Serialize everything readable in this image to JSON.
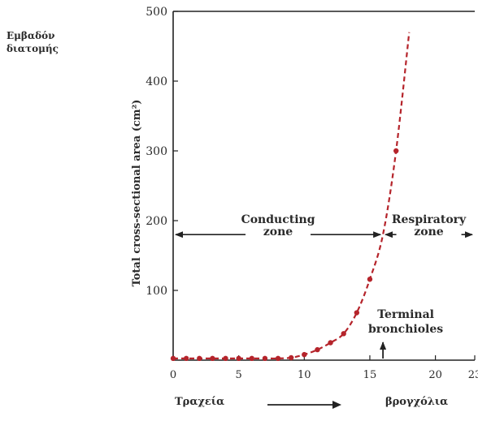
{
  "side_label": {
    "line1": "Εμβαδόν",
    "line2": "διατομής"
  },
  "bottom_labels": {
    "left": "Τραχεία",
    "right": "βρογχόλια"
  },
  "chart_data": {
    "type": "line",
    "ylabel": "Total cross-sectional area (cm²)",
    "xlim": [
      0,
      23
    ],
    "ylim": [
      0,
      500
    ],
    "x_ticks": [
      0,
      5,
      10,
      15,
      20,
      23
    ],
    "x_tick_labels": [
      "0",
      "5",
      "10",
      "15",
      "20",
      "23"
    ],
    "y_ticks": [
      100,
      200,
      300,
      400,
      500
    ],
    "y_tick_labels": [
      "100",
      "200",
      "300",
      "400",
      "500"
    ],
    "series": [
      {
        "color": "#b5242b",
        "points": [
          [
            0,
            2.5
          ],
          [
            1,
            2.5
          ],
          [
            2,
            2.5
          ],
          [
            3,
            2.5
          ],
          [
            4,
            2.5
          ],
          [
            5,
            2.5
          ],
          [
            6,
            2.5
          ],
          [
            7,
            2.5
          ],
          [
            8,
            2.5
          ],
          [
            9,
            3.5
          ],
          [
            10,
            8
          ],
          [
            11,
            15
          ],
          [
            12,
            25
          ],
          [
            13,
            38
          ],
          [
            14,
            68
          ],
          [
            15,
            116
          ],
          [
            16,
            180
          ],
          [
            17,
            300
          ],
          [
            18,
            470
          ]
        ],
        "marker_indices": [
          0,
          1,
          2,
          3,
          4,
          5,
          6,
          7,
          8,
          9,
          10,
          11,
          12,
          13,
          14,
          15,
          17
        ]
      }
    ],
    "zones": [
      {
        "label_line1": "Conducting",
        "label_line2": "zone",
        "from": 0,
        "to": 16
      },
      {
        "label_line1": "Respiratory",
        "label_line2": "zone",
        "from": 16,
        "to": 23
      }
    ],
    "zone_arrow_y": 180,
    "annotation": {
      "label_line1": "Terminal",
      "label_line2": "bronchioles",
      "x": 16
    },
    "grid": false
  }
}
